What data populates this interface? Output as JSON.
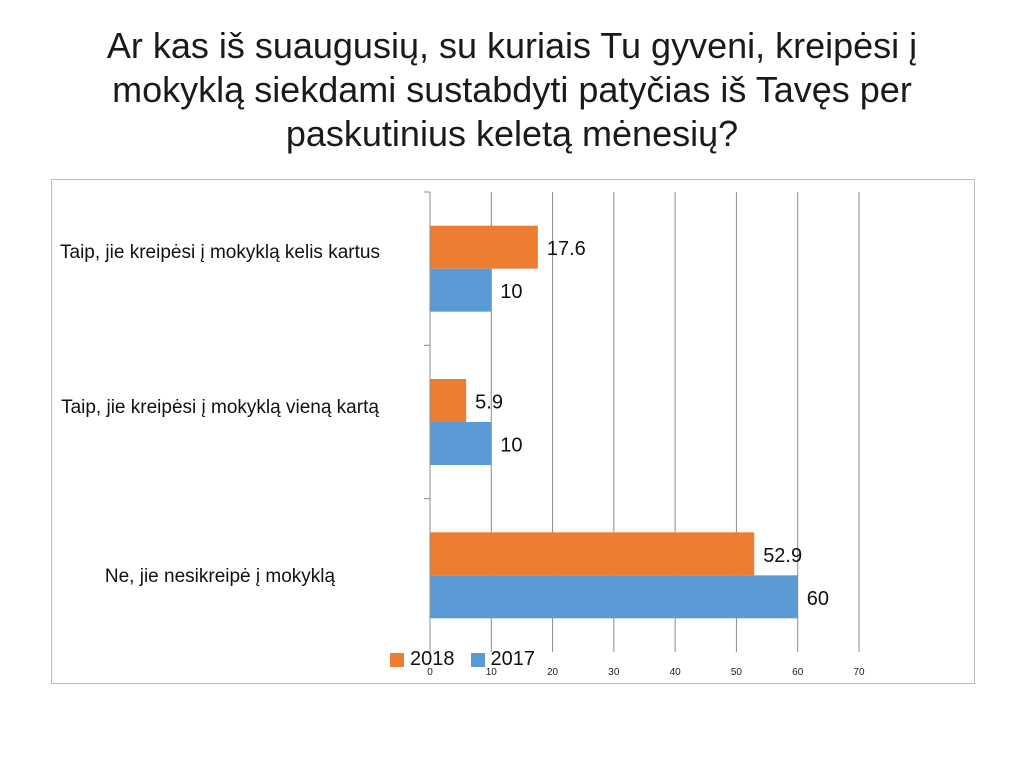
{
  "title": "Ar kas iš suaugusių, su kuriais Tu gyveni, kreipėsi į mokyklą siekdami sustabdyti patyčias iš Tavęs per paskutinius keletą mėnesių?",
  "chart_data": {
    "type": "bar",
    "orientation": "horizontal",
    "title": "Ar kas iš suaugusių, su kuriais Tu gyveni, kreipėsi į mokyklą siekdami sustabdyti patyčias iš Tavęs per paskutinius keletą mėnesių?",
    "categories": [
      "Taip, jie kreipėsi į mokyklą kelis kartus",
      "Taip, jie kreipėsi į mokyklą vieną kartą",
      "Ne, jie nesikreipė į mokyklą"
    ],
    "series": [
      {
        "name": "2018",
        "color": "#ED7D31",
        "values": [
          17.6,
          5.9,
          52.9
        ],
        "labels": [
          "17.6",
          "5.9",
          "52.9"
        ]
      },
      {
        "name": "2017",
        "color": "#5B9BD5",
        "values": [
          10,
          10,
          60
        ],
        "labels": [
          "10",
          "10",
          "60"
        ]
      }
    ],
    "xlim": [
      0,
      70
    ],
    "xticks": [
      "0",
      "10",
      "20",
      "30",
      "40",
      "50",
      "60",
      "70"
    ],
    "grid": true,
    "legend": "bottom-center",
    "xlabel": "",
    "ylabel": ""
  }
}
